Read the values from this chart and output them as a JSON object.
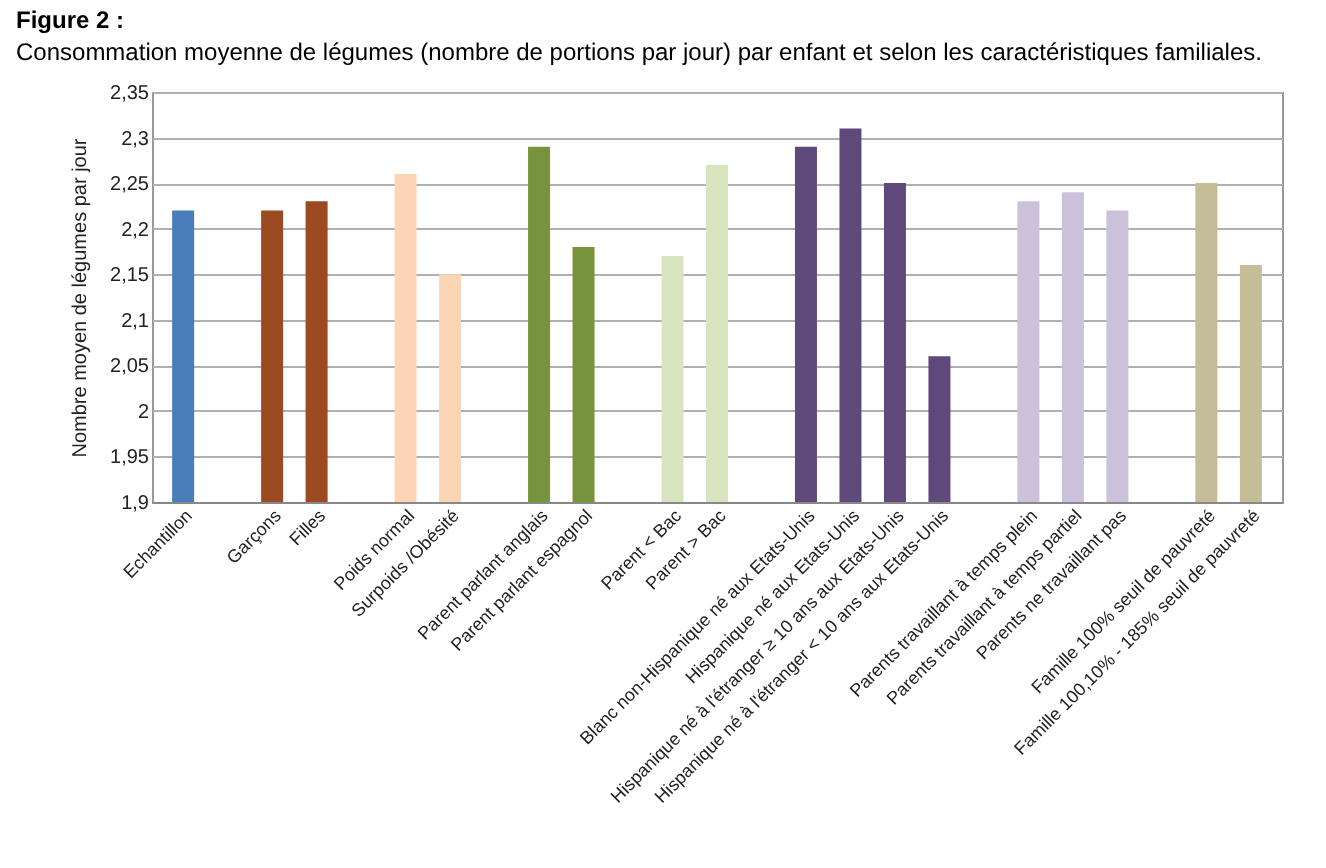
{
  "chart_data": {
    "type": "bar",
    "title": "Figure 2 :",
    "subtitle": "Consommation moyenne de légumes (nombre de portions par jour) par enfant et selon les caractéristiques familiales.",
    "ylabel": "Nombre moyen de légumes par jour",
    "categories": [
      "Echantillon",
      null,
      "Garçons",
      "Filles",
      null,
      "Poids normal",
      "Surpoids /Obésité",
      null,
      "Parent parlant anglais",
      "Parent parlant espagnol",
      null,
      "Parent < Bac",
      "Parent > Bac",
      null,
      "Blanc non-Hispanique né aux Etats-Unis",
      "Hispanique né aux Etats-Unis",
      "Hispanique né à l'étranger ≥ 10 ans aux Etats-Unis",
      "Hispanique né à l'étranger < 10 ans aux Etats-Unis",
      null,
      "Parents travaillant à temps plein",
      "Parents travaillant à temps partiel",
      "Parents ne travaillant pas",
      null,
      "Famille 100% seuil de pauvreté",
      "Famille 100,10% - 185% seuil de pauvreté"
    ],
    "values": [
      2.22,
      null,
      2.22,
      2.23,
      null,
      2.26,
      2.15,
      null,
      2.29,
      2.18,
      null,
      2.17,
      2.27,
      null,
      2.29,
      2.31,
      2.25,
      2.06,
      null,
      2.23,
      2.24,
      2.22,
      null,
      2.25,
      2.16
    ],
    "colors": [
      "#4a7ebb",
      null,
      "#9c4a22",
      "#9c4a22",
      null,
      "#fcd5b5",
      "#fcd5b5",
      null,
      "#77933c",
      "#77933c",
      null,
      "#d7e4bd",
      "#d7e4bd",
      null,
      "#5f497a",
      "#5f497a",
      "#5f497a",
      "#5f497a",
      null,
      "#ccc1da",
      "#ccc1da",
      "#ccc1da",
      null,
      "#c4bd97",
      "#c4bd97"
    ],
    "ylim": [
      1.9,
      2.35
    ],
    "yticks": [
      {
        "value": 1.9,
        "label": "1,9"
      },
      {
        "value": 1.95,
        "label": "1,95"
      },
      {
        "value": 2,
        "label": "2"
      },
      {
        "value": 2.05,
        "label": "2,05"
      },
      {
        "value": 2.1,
        "label": "2,1"
      },
      {
        "value": 2.15,
        "label": "2,15"
      },
      {
        "value": 2.2,
        "label": "2,2"
      },
      {
        "value": 2.25,
        "label": "2,25"
      },
      {
        "value": 2.3,
        "label": "2,3"
      },
      {
        "value": 2.35,
        "label": "2,35"
      }
    ],
    "grid": "y"
  }
}
